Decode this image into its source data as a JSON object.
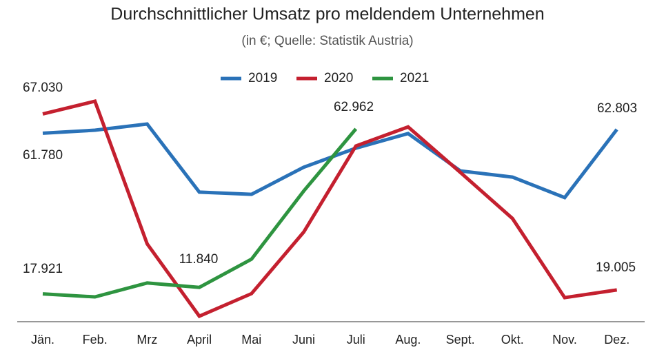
{
  "chart_data": {
    "type": "line",
    "title": "Durchschnittlicher Umsatz pro meldendem Unternehmen",
    "subtitle": "(in €; Quelle: Statistik Austria)",
    "categories": [
      "Jän.",
      "Feb.",
      "Mrz",
      "April",
      "Mai",
      "Juni",
      "Juli",
      "Aug.",
      "Sept.",
      "Okt.",
      "Nov.",
      "Dez."
    ],
    "series": [
      {
        "name": "2019",
        "color": "#2a72b8",
        "values": [
          61780,
          62600,
          64300,
          45700,
          45100,
          52500,
          57700,
          61700,
          51500,
          49800,
          44200,
          62803
        ],
        "value_labels": [
          "61.780",
          null,
          null,
          null,
          null,
          null,
          null,
          null,
          null,
          null,
          null,
          "62.803"
        ]
      },
      {
        "name": "2020",
        "color": "#c4202f",
        "values": [
          67030,
          70500,
          31600,
          11840,
          18000,
          34800,
          58300,
          63500,
          51100,
          38500,
          16900,
          19005
        ],
        "value_labels": [
          "67.030",
          null,
          null,
          "11.840",
          null,
          null,
          null,
          null,
          null,
          null,
          null,
          "19.005"
        ]
      },
      {
        "name": "2021",
        "color": "#2e9440",
        "values": [
          17921,
          17100,
          20900,
          19700,
          27400,
          46000,
          62962,
          null,
          null,
          null,
          null,
          null
        ],
        "value_labels": [
          "17.921",
          null,
          null,
          null,
          null,
          null,
          "62.962",
          null,
          null,
          null,
          null,
          null
        ]
      }
    ],
    "legend": "top"
  }
}
